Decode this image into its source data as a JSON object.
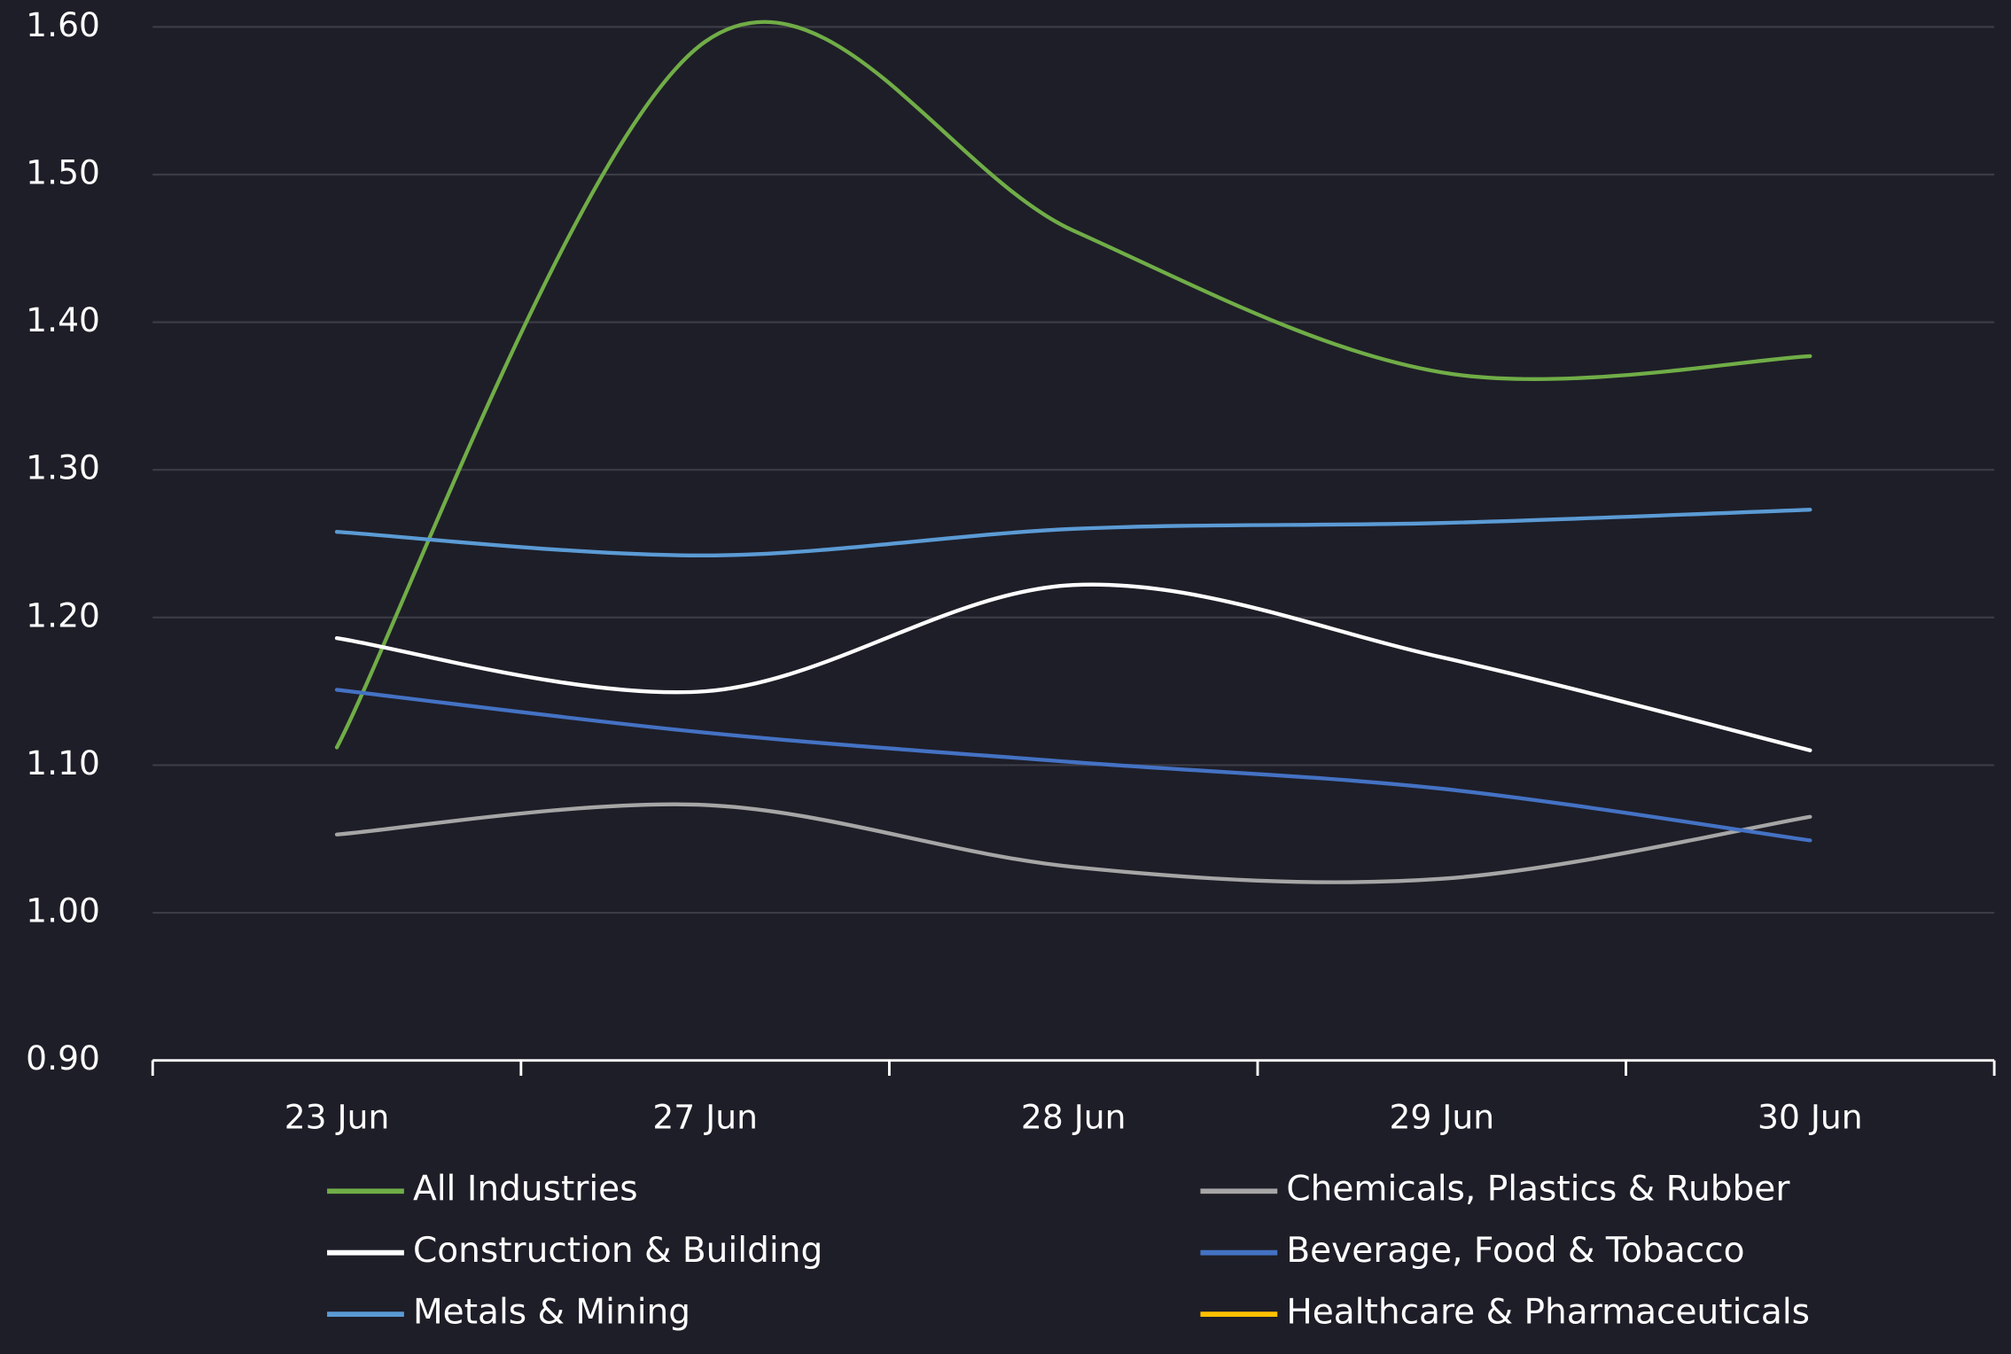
{
  "chart_data": {
    "type": "line",
    "categories": [
      "23 Jun",
      "27 Jun",
      "28 Jun",
      "29 Jun",
      "30 Jun"
    ],
    "series": [
      {
        "name": "All Industries",
        "color": "#70ad47",
        "values": [
          1.112,
          1.59,
          1.462,
          1.366,
          1.377
        ]
      },
      {
        "name": "Chemicals, Plastics & Rubber",
        "color": "#a6a6a6",
        "values": [
          1.053,
          1.073,
          1.031,
          1.023,
          1.065
        ]
      },
      {
        "name": "Construction & Building",
        "color": "#ffffff",
        "values": [
          1.186,
          1.15,
          1.222,
          1.173,
          1.11
        ]
      },
      {
        "name": "Beverage, Food & Tobacco",
        "color": "#4472c4",
        "values": [
          1.151,
          1.122,
          1.102,
          1.084,
          1.049
        ]
      },
      {
        "name": "Metals & Mining",
        "color": "#5b9bd5",
        "values": [
          1.258,
          1.242,
          1.26,
          1.264,
          1.273
        ]
      },
      {
        "name": "Healthcare & Pharmaceuticals",
        "color": "#ffc000",
        "values": [
          null,
          null,
          null,
          null,
          null
        ]
      }
    ],
    "ylim": [
      0.9,
      1.6
    ],
    "yticks": [
      {
        "value": 0.9,
        "label": "0.90"
      },
      {
        "value": 1.0,
        "label": "1.00"
      },
      {
        "value": 1.1,
        "label": "1.10"
      },
      {
        "value": 1.2,
        "label": "1.20"
      },
      {
        "value": 1.3,
        "label": "1.30"
      },
      {
        "value": 1.4,
        "label": "1.40"
      },
      {
        "value": 1.5,
        "label": "1.50"
      },
      {
        "value": 1.6,
        "label": "1.60"
      }
    ],
    "grid": true
  }
}
